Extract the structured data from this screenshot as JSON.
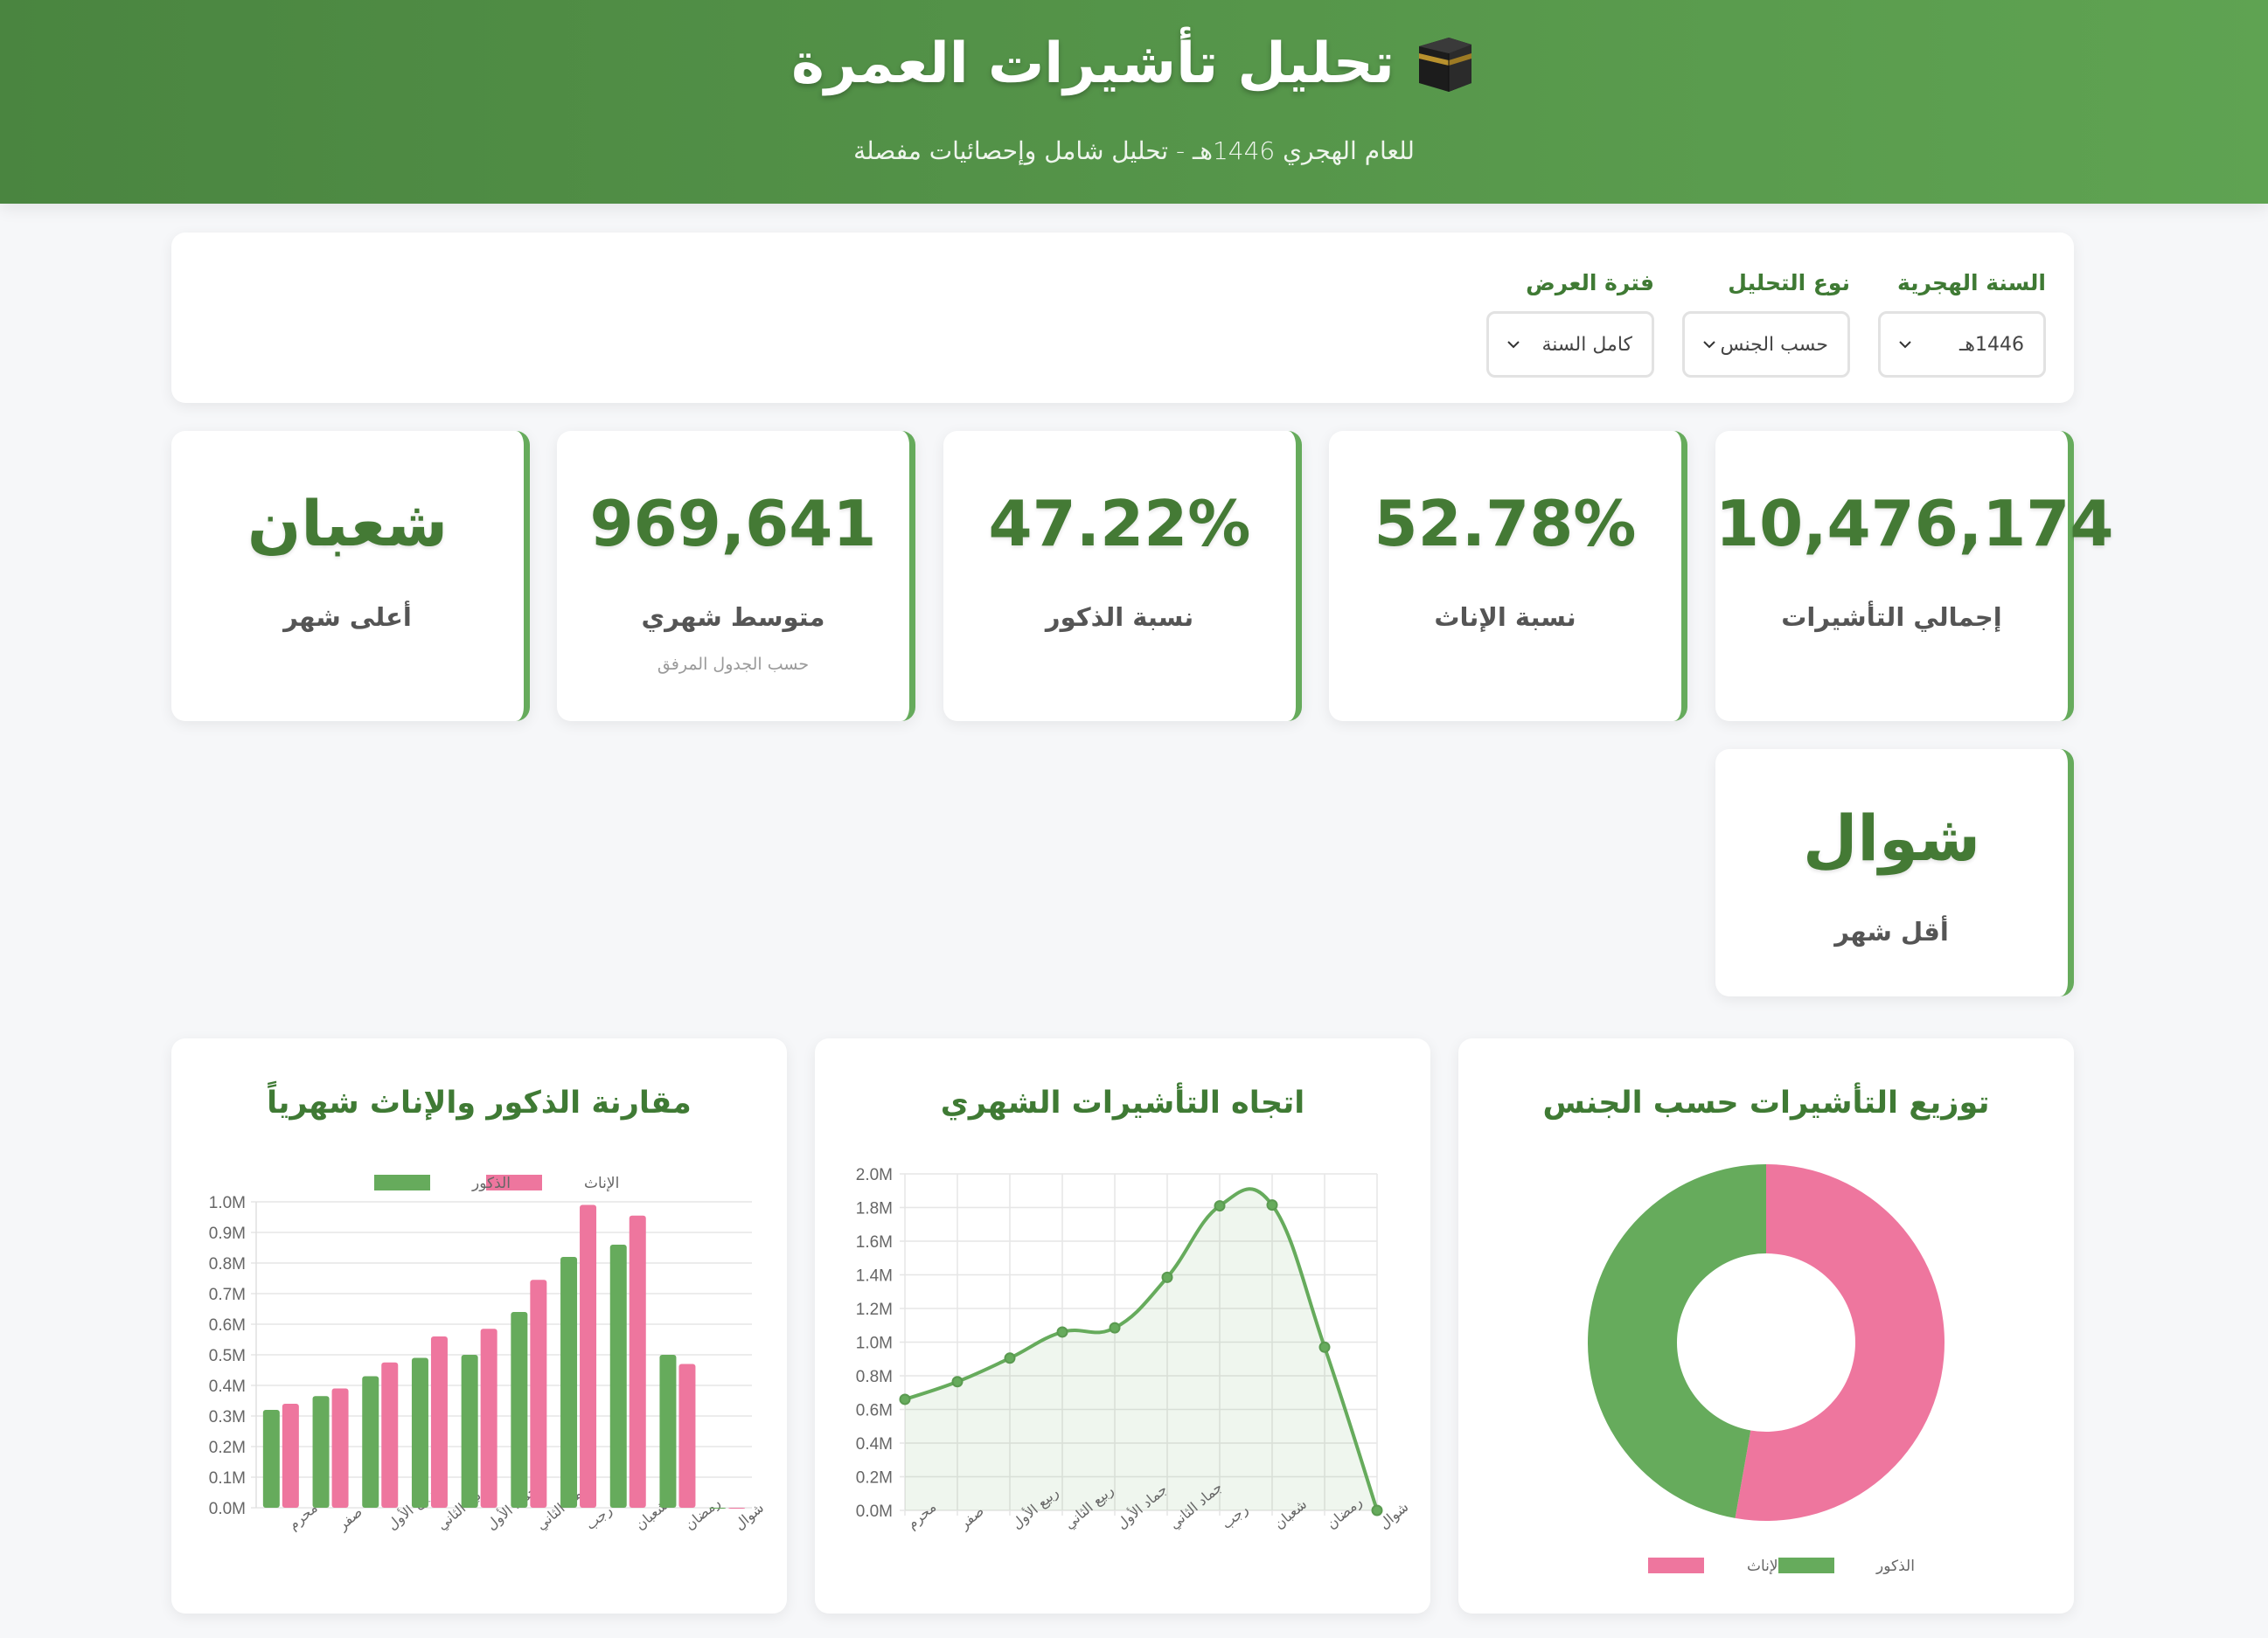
{
  "header": {
    "icon": "kaaba-icon",
    "title": "تحليل تأشيرات العمرة",
    "subtitle": "للعام الهجري 1446هـ - تحليل شامل وإحصائيات مفصلة"
  },
  "filters": [
    {
      "label": "السنة الهجرية",
      "value": "1446هـ"
    },
    {
      "label": "نوع التحليل",
      "value": "حسب الجنس"
    },
    {
      "label": "فترة العرض",
      "value": "كامل السنة"
    }
  ],
  "stats": [
    {
      "value": "10,476,174",
      "label": "إجمالي التأشيرات",
      "note": ""
    },
    {
      "value": "52.78%",
      "label": "نسبة الإناث",
      "note": ""
    },
    {
      "value": "47.22%",
      "label": "نسبة الذكور",
      "note": ""
    },
    {
      "value": "969,641",
      "label": "متوسط شهري",
      "note": "حسب الجدول المرفق"
    },
    {
      "value": "شعبان",
      "label": "أعلى شهر",
      "note": ""
    },
    {
      "value": "شوال",
      "label": "أقل شهر",
      "note": ""
    }
  ],
  "colors": {
    "male": "#66ab5c",
    "female": "#ee769e",
    "accent": "#447a35",
    "header_start": "#4a8540",
    "header_end": "#5fa352"
  },
  "charts": {
    "bar_title": "مقارنة الذكور والإناث شهرياً",
    "line_title": "اتجاه التأشيرات الشهري",
    "pie_title": "توزيع التأشيرات حسب الجنس"
  },
  "chart_data": [
    {
      "type": "bar",
      "title": "مقارنة الذكور والإناث شهرياً",
      "categories": [
        "محرم",
        "صفر",
        "ربيع الأول",
        "ربيع الثاني",
        "جماد الأول",
        "جماد الثاني",
        "رجب",
        "شعبان",
        "رمضان",
        "شوال"
      ],
      "series": [
        {
          "name": "الذكور",
          "color": "#66ab5c",
          "values": [
            0.32,
            0.365,
            0.43,
            0.49,
            0.5,
            0.64,
            0.82,
            0.86,
            0.5,
            0.0
          ]
        },
        {
          "name": "الإناث",
          "color": "#ee769e",
          "values": [
            0.34,
            0.39,
            0.475,
            0.56,
            0.585,
            0.745,
            0.99,
            0.955,
            0.47,
            0.0
          ]
        }
      ],
      "unit": "M",
      "ylim": [
        0,
        1.0
      ],
      "yticks": [
        "0.0M",
        "0.1M",
        "0.2M",
        "0.3M",
        "0.4M",
        "0.5M",
        "0.6M",
        "0.7M",
        "0.8M",
        "0.9M",
        "1.0M"
      ],
      "legend_position": "top",
      "grid": true
    },
    {
      "type": "line",
      "title": "اتجاه التأشيرات الشهري",
      "categories": [
        "محرم",
        "صفر",
        "ربيع الأول",
        "ربيع الثاني",
        "جماد الأول",
        "جماد الثاني",
        "رجب",
        "شعبان",
        "رمضان",
        "شوال"
      ],
      "series": [
        {
          "name": "إجمالي التأشيرات",
          "color": "#66ab5c",
          "values": [
            0.66,
            0.765,
            0.905,
            1.06,
            1.085,
            1.385,
            1.81,
            1.815,
            0.97,
            0.0
          ]
        }
      ],
      "unit": "M",
      "ylim": [
        0,
        2.0
      ],
      "yticks": [
        "0.0M",
        "0.2M",
        "0.4M",
        "0.6M",
        "0.8M",
        "1.0M",
        "1.2M",
        "1.4M",
        "1.6M",
        "1.8M",
        "2.0M"
      ],
      "fill": true,
      "grid": true
    },
    {
      "type": "pie",
      "subtype": "doughnut",
      "title": "توزيع التأشيرات حسب الجنس",
      "labels": [
        "الإناث",
        "الذكور"
      ],
      "values": [
        52.78,
        47.22
      ],
      "colors": [
        "#ee769e",
        "#66ab5c"
      ],
      "legend_position": "bottom"
    }
  ]
}
